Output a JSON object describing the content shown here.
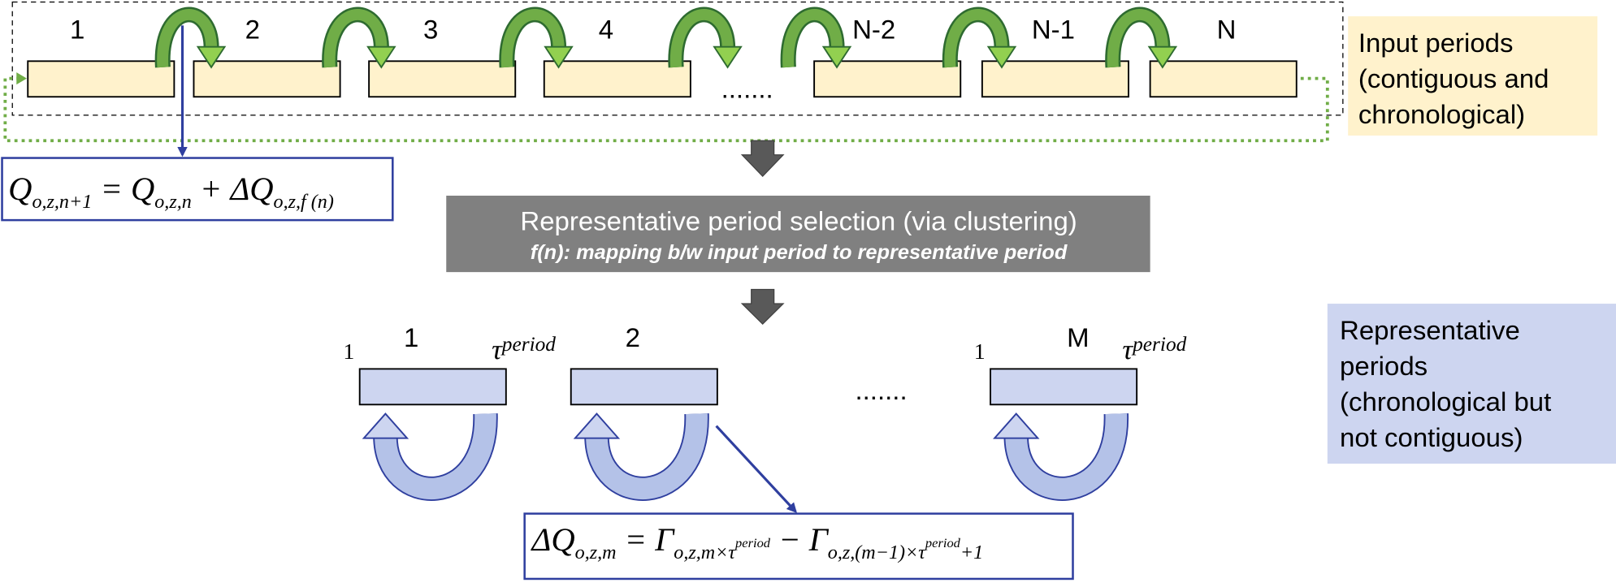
{
  "input_labels": [
    "1",
    "2",
    "3",
    "4",
    "N-2",
    "N-1",
    "N"
  ],
  "input_dots": ".......",
  "input_note": [
    "Input periods",
    "(contiguous and",
    "chronological)"
  ],
  "formula_1": [
    {
      "text": "Q"
    },
    {
      "sub": "o,z,n+1"
    },
    {
      "text": " = Q"
    },
    {
      "sub": "o,z,n"
    },
    {
      "text": " + ΔQ"
    },
    {
      "sub": "o,z,f (n)"
    }
  ],
  "selection": {
    "title": "Representative period selection (via clustering)",
    "subtitle": "f(n): mapping b/w input period to representative period"
  },
  "rep_labels": [
    "1",
    "2",
    "M"
  ],
  "rep_start": "1",
  "rep_end": {
    "base": "τ",
    "sup": "period"
  },
  "rep_dots": ".......",
  "rep_note": [
    "Representative",
    "periods",
    "(chronological but",
    "not contiguous)"
  ],
  "formula_2": [
    {
      "text": "ΔQ"
    },
    {
      "sub": "o,z,m"
    },
    {
      "text": " = Γ"
    },
    {
      "sub": "o,z,m×τ"
    },
    {
      "subsup": "period"
    },
    {
      "text": " − Γ"
    },
    {
      "sub": "o,z,(m−1)×τ"
    },
    {
      "subsup": "period"
    },
    {
      "sub": "+1"
    }
  ]
}
